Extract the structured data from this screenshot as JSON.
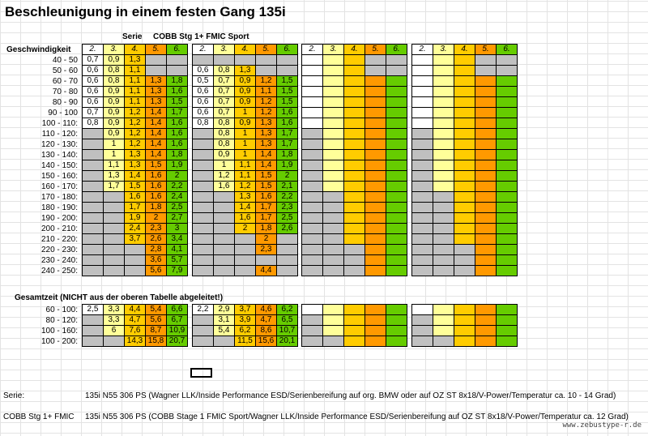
{
  "title": "Beschleunigung in einem festen Gang 135i",
  "labels": {
    "geschwindigkeit": "Geschwindigkeit",
    "serie": "Serie",
    "cobb": "COBB Stg 1+ FMIC Sport",
    "gesamtzeit": "Gesamtzeit (NICHT aus der oberen Tabelle abgeleitet!)"
  },
  "gears": [
    "2.",
    "3.",
    "4.",
    "5.",
    "6."
  ],
  "colors": {
    "g2": "#ffffff",
    "g3": "#ffff99",
    "g4": "#ffcc00",
    "g5": "#ff9900",
    "g6": "#66cc00",
    "empty": "#c0c0c0"
  },
  "speed_ranges": [
    "40 - 50",
    "50 - 60",
    "60 - 70",
    "70 - 80",
    "80 - 90",
    "90 - 100",
    "100 - 110:",
    "110 - 120:",
    "120 - 130:",
    "130 - 140:",
    "140 - 150:",
    "150 - 160:",
    "160 - 170:",
    "170 - 180:",
    "180 - 190:",
    "190 - 200:",
    "200 - 210:",
    "210 - 220:",
    "220 - 230:",
    "230 - 240:",
    "240 - 250:"
  ],
  "serie_values": [
    [
      "0,7",
      "0,9",
      "1,3",
      "",
      ""
    ],
    [
      "0,6",
      "0,8",
      "1,1",
      "",
      ""
    ],
    [
      "0,6",
      "0,8",
      "1,1",
      "1,3",
      "1,8"
    ],
    [
      "0,6",
      "0,9",
      "1,1",
      "1,3",
      "1,6"
    ],
    [
      "0,6",
      "0,9",
      "1,1",
      "1,3",
      "1,5"
    ],
    [
      "0,7",
      "0,9",
      "1,2",
      "1,4",
      "1,7"
    ],
    [
      "0,8",
      "0,9",
      "1,2",
      "1,4",
      "1,6"
    ],
    [
      "",
      "0,9",
      "1,2",
      "1,4",
      "1,6"
    ],
    [
      "",
      "1",
      "1,2",
      "1,4",
      "1,6"
    ],
    [
      "",
      "1",
      "1,3",
      "1,4",
      "1,8"
    ],
    [
      "",
      "1,1",
      "1,3",
      "1,5",
      "1,9"
    ],
    [
      "",
      "1,3",
      "1,4",
      "1,6",
      "2"
    ],
    [
      "",
      "1,7",
      "1,5",
      "1,6",
      "2,2"
    ],
    [
      "",
      "",
      "1,6",
      "1,6",
      "2,4"
    ],
    [
      "",
      "",
      "1,7",
      "1,8",
      "2,5"
    ],
    [
      "",
      "",
      "1,9",
      "2",
      "2,7"
    ],
    [
      "",
      "",
      "2,4",
      "2,3",
      "3"
    ],
    [
      "",
      "",
      "3,7",
      "2,6",
      "3,4"
    ],
    [
      "",
      "",
      "",
      "2,8",
      "4,1"
    ],
    [
      "",
      "",
      "",
      "3,6",
      "5,7"
    ],
    [
      "",
      "",
      "",
      "5,6",
      "7,9"
    ]
  ],
  "cobb_values": [
    [
      "",
      "",
      "",
      "",
      ""
    ],
    [
      "0,6",
      "0,8",
      "1,3",
      "",
      ""
    ],
    [
      "0,5",
      "0,7",
      "0,9",
      "1,2",
      "1,5"
    ],
    [
      "0,6",
      "0,7",
      "0,9",
      "1,1",
      "1,5"
    ],
    [
      "0,6",
      "0,7",
      "0,9",
      "1,2",
      "1,5"
    ],
    [
      "0,6",
      "0,7",
      "1",
      "1,2",
      "1,6"
    ],
    [
      "0,8",
      "0,8",
      "0,9",
      "1,3",
      "1,6"
    ],
    [
      "",
      "0,8",
      "1",
      "1,3",
      "1,7"
    ],
    [
      "",
      "0,8",
      "1",
      "1,3",
      "1,7"
    ],
    [
      "",
      "0,9",
      "1",
      "1,4",
      "1,8"
    ],
    [
      "",
      "1",
      "1,1",
      "1,4",
      "1,9"
    ],
    [
      "",
      "1,2",
      "1,1",
      "1,5",
      "2"
    ],
    [
      "",
      "1,6",
      "1,2",
      "1,5",
      "2,1"
    ],
    [
      "",
      "",
      "1,3",
      "1,6",
      "2,2"
    ],
    [
      "",
      "",
      "1,4",
      "1,7",
      "2,3"
    ],
    [
      "",
      "",
      "1,6",
      "1,7",
      "2,5"
    ],
    [
      "",
      "",
      "2",
      "1,8",
      "2,6"
    ],
    [
      "",
      "",
      "",
      "2",
      ""
    ],
    [
      "",
      "",
      "",
      "2,3",
      ""
    ],
    [
      "",
      "",
      "",
      "",
      ""
    ],
    [
      "",
      "",
      "",
      "4,4",
      ""
    ]
  ],
  "gesamt_ranges": [
    "60 - 100:",
    "80 - 120:",
    "100 - 160:",
    "100 - 200:"
  ],
  "gesamt_serie": [
    [
      "2,5",
      "3,3",
      "4,4",
      "5,4",
      "6,6"
    ],
    [
      "",
      "3,3",
      "4,7",
      "5,6",
      "6,7"
    ],
    [
      "",
      "6",
      "7,6",
      "8,7",
      "10,9"
    ],
    [
      "",
      "",
      "14,3",
      "15,8",
      "20,7"
    ]
  ],
  "gesamt_cobb": [
    [
      "2,2",
      "2,9",
      "3,7",
      "4,6",
      "6,2"
    ],
    [
      "",
      "3,1",
      "3,9",
      "4,7",
      "6,5"
    ],
    [
      "",
      "5,4",
      "6,2",
      "8,6",
      "10,7"
    ],
    [
      "",
      "",
      "11,5",
      "15,6",
      "20,1"
    ]
  ],
  "notes": {
    "serie_label": "Serie:",
    "serie_text": "135i N55 306 PS (Wagner LLK/Inside Performance ESD/Serienbereifung auf org. BMW oder auf OZ ST 8x18/V-Power/Temperatur ca. 10 - 14 Grad)",
    "cobb_label": "COBB Stg 1+ FMIC",
    "cobb_text": "135i N55 306 PS (COBB Stage 1 FMIC Sport/Wagner LLK/Inside Performance ESD/Serienbereifung auf OZ ST 8x18/V-Power/Temperatur ca. 12 Grad)",
    "watermark": "www.zebustype-r.de"
  }
}
